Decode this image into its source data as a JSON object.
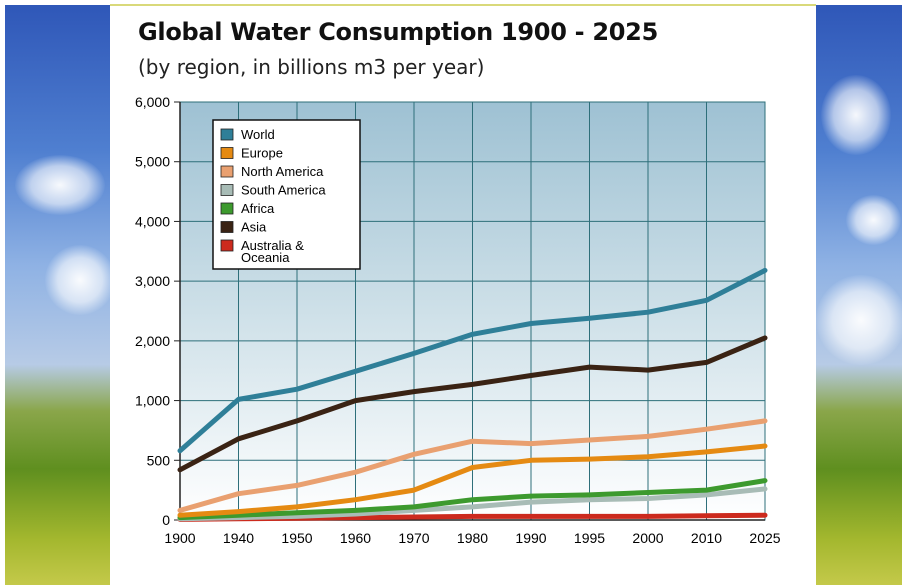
{
  "slide": {
    "title": "Global Water Consumption 1900 - 2025",
    "subtitle": "(by region, in billions m3 per year)"
  },
  "chart_data": {
    "type": "line",
    "title": "Global Water Consumption 1900 - 2025",
    "subtitle": "(by region, in billions m3 per year)",
    "xlabel": "",
    "ylabel": "",
    "x": [
      "1900",
      "1940",
      "1950",
      "1960",
      "1970",
      "1980",
      "1990",
      "1995",
      "2000",
      "2010",
      "2025"
    ],
    "y_ticks": [
      "0",
      "500",
      "1,000",
      "2,000",
      "3,000",
      "4,000",
      "5,000",
      "6,000"
    ],
    "grid": true,
    "legend_position": "top-left",
    "series": [
      {
        "name": "World",
        "color": "#2f7f98",
        "values": [
          580,
          1020,
          1190,
          1490,
          1790,
          2110,
          2290,
          2380,
          2480,
          2680,
          3180
        ]
      },
      {
        "name": "Europe",
        "color": "#e58a12",
        "values": [
          40,
          70,
          110,
          170,
          250,
          440,
          500,
          510,
          530,
          570,
          620
        ]
      },
      {
        "name": "North America",
        "color": "#e9a070",
        "values": [
          80,
          220,
          290,
          400,
          550,
          660,
          640,
          670,
          700,
          760,
          830
        ]
      },
      {
        "name": "South America",
        "color": "#a8bcb6",
        "values": [
          10,
          20,
          30,
          50,
          80,
          110,
          150,
          170,
          180,
          210,
          260
        ]
      },
      {
        "name": "Africa",
        "color": "#3d9a2e",
        "values": [
          20,
          40,
          60,
          80,
          110,
          170,
          200,
          210,
          230,
          250,
          330
        ]
      },
      {
        "name": "Asia",
        "color": "#3a2314",
        "values": [
          420,
          680,
          830,
          1000,
          1150,
          1270,
          1420,
          1560,
          1510,
          1640,
          2050
        ]
      },
      {
        "name": "Australia & Oceania",
        "color": "#cc2a1d",
        "values": [
          5,
          10,
          15,
          20,
          25,
          30,
          30,
          30,
          30,
          35,
          40
        ]
      }
    ]
  }
}
